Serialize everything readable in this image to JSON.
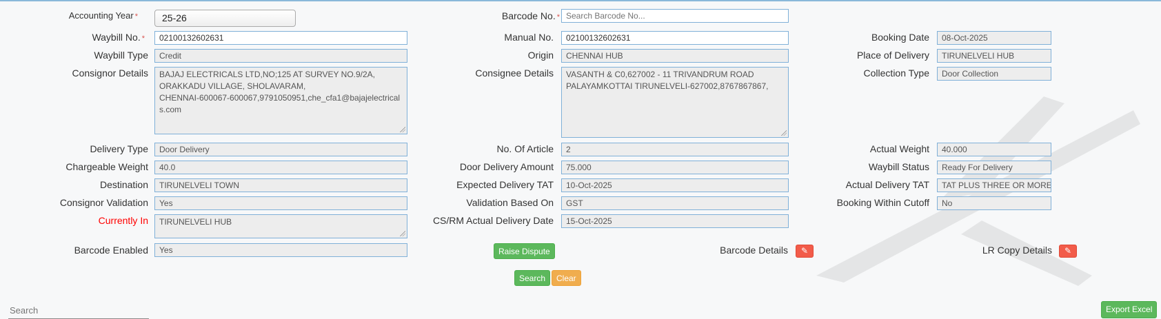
{
  "form": {
    "accounting_year": {
      "label": "Accounting Year",
      "value": "25-26"
    },
    "barcode_no": {
      "label": "Barcode No.",
      "placeholder": "Search Barcode No..."
    },
    "waybill_no": {
      "label": "Waybill No.",
      "value": "02100132602631"
    },
    "manual_no": {
      "label": "Manual No.",
      "value": "02100132602631"
    },
    "booking_date": {
      "label": "Booking Date",
      "value": "08-Oct-2025"
    },
    "waybill_type": {
      "label": "Waybill Type",
      "value": "Credit"
    },
    "origin": {
      "label": "Origin",
      "value": "CHENNAI HUB"
    },
    "place_of_delivery": {
      "label": "Place of Delivery",
      "value": "TIRUNELVELI HUB"
    },
    "consignor_details": {
      "label": "Consignor Details",
      "value": "BAJAJ ELECTRICALS LTD,NO;125 AT SURVEY NO.9/2A,\nORAKKADU VILLAGE, SHOLAVARAM,\nCHENNAI-600067-600067,9791050951,che_cfa1@bajajelectrical\ns.com"
    },
    "consignee_details": {
      "label": "Consignee Details",
      "value": "VASANTH & C0,627002 - 11 TRIVANDRUM ROAD\nPALAYAMKOTTAI TIRUNELVELI-627002,8767867867,"
    },
    "collection_type": {
      "label": "Collection Type",
      "value": "Door Collection"
    },
    "delivery_type": {
      "label": "Delivery Type",
      "value": "Door Delivery"
    },
    "no_of_article": {
      "label": "No. Of Article",
      "value": "2"
    },
    "actual_weight": {
      "label": "Actual Weight",
      "value": "40.000"
    },
    "chargeable_weight": {
      "label": "Chargeable Weight",
      "value": "40.0"
    },
    "door_delivery_amount": {
      "label": "Door Delivery Amount",
      "value": "75.000"
    },
    "waybill_status": {
      "label": "Waybill Status",
      "value": "Ready For Delivery"
    },
    "destination": {
      "label": "Destination",
      "value": "TIRUNELVELI TOWN"
    },
    "expected_delivery_tat": {
      "label": "Expected Delivery TAT",
      "value": "10-Oct-2025"
    },
    "actual_delivery_tat": {
      "label": "Actual Delivery TAT",
      "value": "TAT PLUS THREE OR MORE T"
    },
    "consignor_validation": {
      "label": "Consignor Validation",
      "value": "Yes"
    },
    "validation_based_on": {
      "label": "Validation Based On",
      "value": "GST"
    },
    "booking_within_cutoff": {
      "label": "Booking Within Cutoff",
      "value": "No"
    },
    "currently_in": {
      "label": "Currently In",
      "value": "TIRUNELVELI HUB",
      "label_color": "#ff0000"
    },
    "cs_rm_actual_delivery_date": {
      "label": "CS/RM Actual Delivery Date",
      "value": "15-Oct-2025"
    },
    "barcode_enabled": {
      "label": "Barcode Enabled",
      "value": "Yes"
    },
    "barcode_details": {
      "label": "Barcode Details"
    },
    "lr_copy_details": {
      "label": "LR Copy Details"
    },
    "required_mark": "*"
  },
  "buttons": {
    "raise_dispute": "Raise Dispute",
    "search": "Search",
    "clear": "Clear",
    "export_excel": "Export Excel"
  },
  "table_search": {
    "placeholder": "Search"
  },
  "colors": {
    "green": "#5cb85c",
    "orange": "#f0ad4e",
    "red": "#f25c4a",
    "border": "#7fb0d8"
  }
}
